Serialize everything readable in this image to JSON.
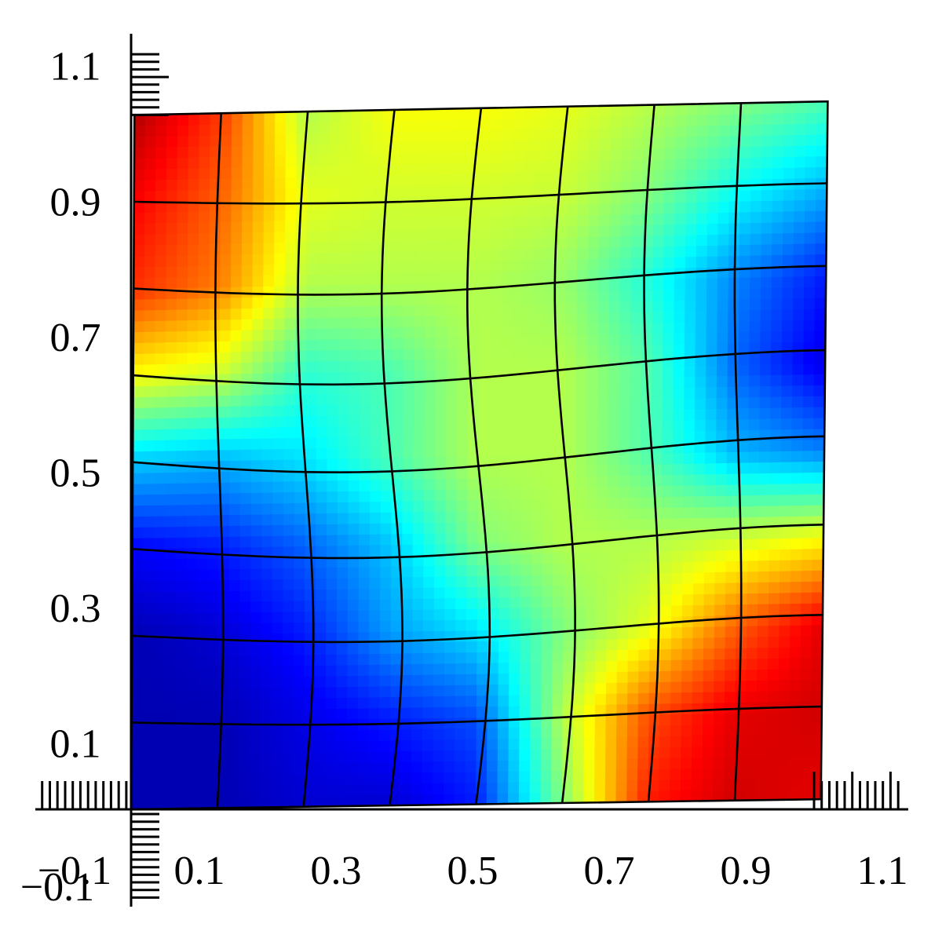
{
  "chart_data": {
    "type": "heatmap",
    "title": "",
    "xlabel": "",
    "ylabel": "",
    "xlim": [
      -0.1,
      1.1
    ],
    "ylim": [
      -0.1,
      1.1
    ],
    "x_tick_labels": [
      "−0.1",
      "0.1",
      "0.3",
      "0.5",
      "0.7",
      "0.9",
      "1.1"
    ],
    "y_tick_labels": [
      "−0.1",
      "0.1",
      "0.3",
      "0.5",
      "0.7",
      "0.9",
      "1.1"
    ],
    "x_ticks": [
      -0.1,
      0.1,
      0.3,
      0.5,
      0.7,
      0.9,
      1.1
    ],
    "y_ticks": [
      -0.1,
      0.1,
      0.3,
      0.5,
      0.7,
      0.9,
      1.1
    ],
    "grid": false,
    "colormap": "jet",
    "field_range": [
      0,
      1
    ],
    "mesh": {
      "description_cells": [
        8,
        8
      ],
      "corners": {
        "bottom_left": [
          0.0,
          0.0
        ],
        "bottom_right": [
          1.01,
          0.015
        ],
        "top_right": [
          1.02,
          1.045
        ],
        "top_left": [
          0.005,
          1.025
        ]
      }
    },
    "field_values": [
      [
        0.95,
        0.82,
        0.55,
        0.62,
        0.62,
        0.6,
        0.55,
        0.5,
        0.45
      ],
      [
        0.88,
        0.78,
        0.6,
        0.58,
        0.58,
        0.57,
        0.5,
        0.38,
        0.3
      ],
      [
        0.83,
        0.75,
        0.55,
        0.55,
        0.55,
        0.52,
        0.4,
        0.25,
        0.15
      ],
      [
        0.62,
        0.58,
        0.42,
        0.45,
        0.55,
        0.55,
        0.45,
        0.22,
        0.1
      ],
      [
        0.32,
        0.3,
        0.35,
        0.45,
        0.55,
        0.55,
        0.45,
        0.3,
        0.25
      ],
      [
        0.12,
        0.15,
        0.22,
        0.32,
        0.5,
        0.55,
        0.55,
        0.58,
        0.62
      ],
      [
        0.05,
        0.08,
        0.15,
        0.28,
        0.35,
        0.5,
        0.6,
        0.78,
        0.9
      ],
      [
        0.05,
        0.05,
        0.1,
        0.15,
        0.2,
        0.55,
        0.8,
        0.9,
        0.92
      ],
      [
        0.05,
        0.05,
        0.08,
        0.08,
        0.15,
        0.5,
        0.85,
        0.92,
        0.9
      ]
    ]
  }
}
